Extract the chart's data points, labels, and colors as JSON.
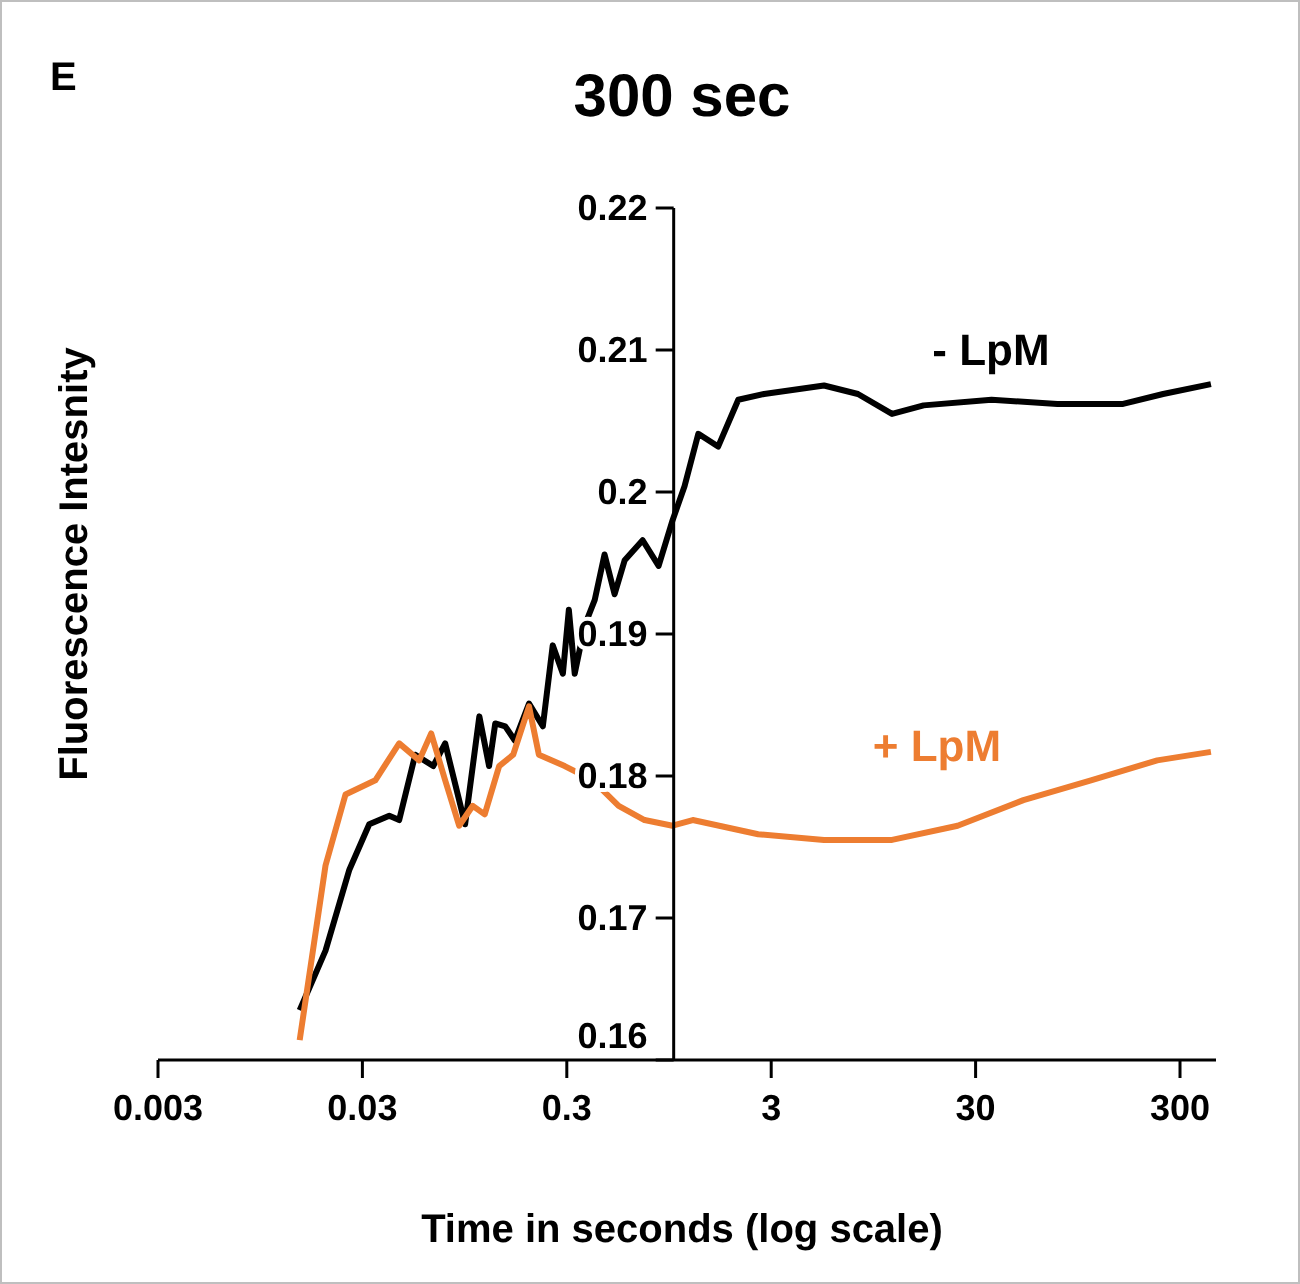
{
  "chart_data": {
    "type": "line",
    "title": "300 sec",
    "xlabel": "Time in seconds (log scale)",
    "ylabel": "Fluorescence Intesnity",
    "annotations": [
      "E"
    ],
    "log": "x",
    "xlim": [
      0.003,
      450
    ],
    "xticks": [
      0.003,
      0.03,
      0.3,
      3,
      30,
      300
    ],
    "ylim": [
      0.16,
      0.22
    ],
    "yticks": [
      0.16,
      0.17,
      0.18,
      0.19,
      0.2,
      0.21,
      0.22
    ],
    "grid": false,
    "legend": false,
    "marker": "none",
    "line_style": "solid",
    "series": [
      {
        "name": "- LpM",
        "color": "#000000",
        "x": [
          0.0148,
          0.0198,
          0.0259,
          0.0324,
          0.0406,
          0.0454,
          0.0544,
          0.0666,
          0.0762,
          0.0954,
          0.112,
          0.125,
          0.134,
          0.15,
          0.167,
          0.196,
          0.229,
          0.256,
          0.287,
          0.307,
          0.328,
          0.367,
          0.411,
          0.459,
          0.514,
          0.576,
          0.705,
          0.844,
          0.987,
          1.13,
          1.32,
          1.65,
          2.07,
          2.77,
          5.44,
          7.97,
          11.7,
          16.7,
          35.9,
          75.4,
          158,
          248,
          425
        ],
        "values": [
          0.1635,
          0.1677,
          0.1734,
          0.1766,
          0.1772,
          0.1769,
          0.1815,
          0.1807,
          0.1823,
          0.1766,
          0.1842,
          0.1807,
          0.1837,
          0.1835,
          0.1825,
          0.1851,
          0.1835,
          0.1892,
          0.1872,
          0.1917,
          0.1872,
          0.1906,
          0.1924,
          0.1956,
          0.1928,
          0.1952,
          0.1966,
          0.1948,
          0.198,
          0.2004,
          0.2041,
          0.2032,
          0.2065,
          0.2069,
          0.2075,
          0.2069,
          0.2055,
          0.2061,
          0.2065,
          0.2062,
          0.2062,
          0.2069,
          0.2076
        ]
      },
      {
        "name": "+ LpM",
        "color": "#ed7d31",
        "x": [
          0.0148,
          0.0198,
          0.0248,
          0.0347,
          0.0454,
          0.0569,
          0.0651,
          0.0762,
          0.0892,
          0.104,
          0.119,
          0.14,
          0.164,
          0.196,
          0.219,
          0.293,
          0.402,
          0.538,
          0.72,
          0.987,
          1.24,
          2.59,
          5.44,
          11.7,
          24.5,
          51.4,
          110,
          232,
          425
        ],
        "values": [
          0.1614,
          0.1737,
          0.1787,
          0.1797,
          0.1823,
          0.1811,
          0.183,
          0.1797,
          0.1765,
          0.1779,
          0.1773,
          0.1807,
          0.1815,
          0.1849,
          0.1815,
          0.1807,
          0.1797,
          0.1779,
          0.1769,
          0.1765,
          0.1769,
          0.1759,
          0.1755,
          0.1755,
          0.1765,
          0.1783,
          0.1797,
          0.1811,
          0.1817
        ]
      }
    ]
  }
}
